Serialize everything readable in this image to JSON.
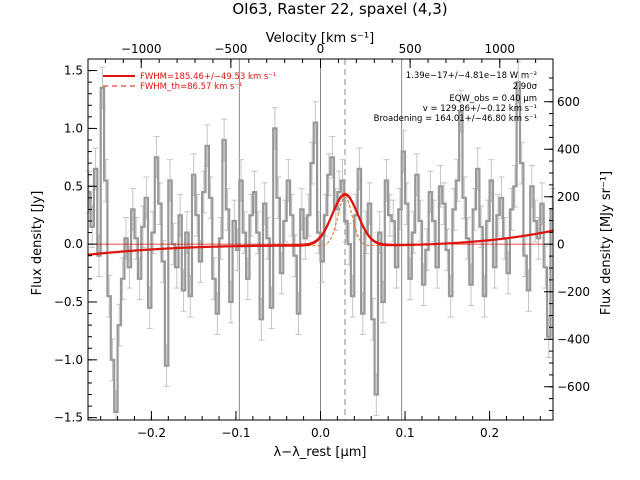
{
  "chart_data": {
    "type": "line",
    "title": "OI63, Raster 22, spaxel (4,3)",
    "xlabel": "λ−λ_rest [μm]",
    "ylabel": "Flux density [Jy]",
    "top_xlabel": "Velocity [km s⁻¹]",
    "right_ylabel": "Flux density [MJy sr⁻¹]",
    "xlim": [
      -0.275,
      0.275
    ],
    "ylim": [
      -1.52,
      1.6
    ],
    "top_xlim": [
      -1297,
      1297
    ],
    "right_ylim": [
      -740,
      780
    ],
    "x_ticks": [
      -0.2,
      -0.1,
      0.0,
      0.1,
      0.2
    ],
    "x_tick_labels": [
      "−0.2",
      "−0.1",
      "0.0",
      "0.1",
      "0.2"
    ],
    "y_ticks": [
      -1.5,
      -1.0,
      -0.5,
      0.0,
      0.5,
      1.0,
      1.5
    ],
    "y_tick_labels": [
      "−1.5",
      "−1.0",
      "−0.5",
      "0.0",
      "0.5",
      "1.0",
      "1.5"
    ],
    "top_ticks": [
      -1000,
      -500,
      0,
      500,
      1000
    ],
    "top_tick_labels": [
      "−1000",
      "−500",
      "0",
      "500",
      "1000"
    ],
    "right_ticks": [
      -600,
      -400,
      -200,
      0,
      200,
      400,
      600
    ],
    "right_tick_labels": [
      "−600",
      "−400",
      "−200",
      "0",
      "200",
      "400",
      "600"
    ],
    "vlines_solid": [
      -0.096,
      0.0,
      0.096
    ],
    "vline_dashed": 0.029,
    "spectrum": {
      "name": "data",
      "x": [
        -0.274,
        -0.27,
        -0.266,
        -0.262,
        -0.258,
        -0.254,
        -0.25,
        -0.246,
        -0.242,
        -0.238,
        -0.234,
        -0.23,
        -0.226,
        -0.222,
        -0.218,
        -0.214,
        -0.21,
        -0.206,
        -0.202,
        -0.198,
        -0.194,
        -0.19,
        -0.186,
        -0.182,
        -0.178,
        -0.174,
        -0.17,
        -0.166,
        -0.162,
        -0.158,
        -0.154,
        -0.15,
        -0.146,
        -0.142,
        -0.138,
        -0.134,
        -0.13,
        -0.126,
        -0.122,
        -0.118,
        -0.114,
        -0.11,
        -0.106,
        -0.102,
        -0.098,
        -0.094,
        -0.09,
        -0.086,
        -0.082,
        -0.078,
        -0.074,
        -0.07,
        -0.066,
        -0.062,
        -0.058,
        -0.054,
        -0.05,
        -0.046,
        -0.042,
        -0.038,
        -0.034,
        -0.03,
        -0.026,
        -0.022,
        -0.018,
        -0.014,
        -0.01,
        -0.006,
        -0.002,
        0.002,
        0.006,
        0.01,
        0.014,
        0.018,
        0.022,
        0.026,
        0.03,
        0.034,
        0.038,
        0.042,
        0.046,
        0.05,
        0.054,
        0.058,
        0.062,
        0.066,
        0.07,
        0.074,
        0.078,
        0.082,
        0.086,
        0.09,
        0.094,
        0.098,
        0.102,
        0.106,
        0.11,
        0.114,
        0.118,
        0.122,
        0.126,
        0.13,
        0.134,
        0.138,
        0.142,
        0.146,
        0.15,
        0.154,
        0.158,
        0.162,
        0.166,
        0.17,
        0.174,
        0.178,
        0.182,
        0.186,
        0.19,
        0.194,
        0.198,
        0.202,
        0.206,
        0.21,
        0.214,
        0.218,
        0.222,
        0.226,
        0.23,
        0.234,
        0.238,
        0.242,
        0.246,
        0.25,
        0.254,
        0.258,
        0.262,
        0.266,
        0.27,
        0.274
      ],
      "y": [
        0.45,
        0.15,
        0.65,
        -0.1,
        1.35,
        0.55,
        -0.45,
        -1.0,
        -1.45,
        -0.7,
        -0.3,
        0.05,
        -0.2,
        0.3,
        0.05,
        -0.3,
        0.15,
        0.4,
        -0.55,
        0.1,
        0.75,
        0.35,
        -0.15,
        -1.05,
        0.55,
        0.0,
        -0.2,
        0.25,
        -0.4,
        0.1,
        -0.45,
        0.6,
        0.25,
        -0.15,
        0.45,
        0.85,
        0.4,
        -0.3,
        -0.6,
        0.05,
        0.9,
        0.3,
        -0.5,
        0.2,
        -0.05,
        0.55,
        0.1,
        -0.3,
        0.25,
        0.45,
        0.1,
        -0.65,
        0.35,
        0.05,
        -0.55,
        1.0,
        0.4,
        -0.25,
        0.2,
        0.55,
        0.25,
        -0.1,
        -0.6,
        0.3,
        0.05,
        0.25,
        0.7,
        1.05,
        0.1,
        -0.15,
        0.25,
        0.6,
        0.75,
        0.3,
        0.45,
        0.55,
        0.2,
        0.0,
        -0.45,
        0.25,
        0.65,
        -0.6,
        0.1,
        0.35,
        -0.65,
        -1.3,
        0.1,
        -0.5,
        0.55,
        0.25,
        0.2,
        -0.2,
        0.3,
        0.8,
        0.35,
        -0.3,
        0.1,
        0.6,
        0.2,
        -0.35,
        -0.05,
        0.45,
        0.2,
        -0.2,
        0.5,
        0.35,
        -0.05,
        -0.45,
        0.3,
        0.55,
        1.15,
        0.4,
        0.05,
        -0.35,
        0.3,
        0.65,
        0.15,
        -0.45,
        0.2,
        0.55,
        -0.2,
        0.25,
        0.4,
        0.05,
        -0.25,
        0.3,
        0.5,
        1.4,
        0.7,
        -0.1,
        -0.4,
        0.5,
        0.2,
        0.05,
        0.35,
        -0.2,
        -0.8,
        0.3
      ],
      "error": 0.18
    },
    "fit": {
      "name": "fit",
      "continuum": [
        -0.0132,
        0.0,
        0.0,
        5.0,
        4.5
      ],
      "line_center": 0.029,
      "line_amplitude": 0.44,
      "line_sigma": 0.0153
    },
    "fit_theoretical": {
      "name": "theoretical",
      "line_amplitude": 0.42,
      "line_sigma": 0.0085
    },
    "legend": [
      {
        "label": "FWHM=185.46+/−49.53 km s⁻¹",
        "style": "solid"
      },
      {
        "label": "FWHM_th=86.57 km s⁻¹",
        "style": "dashed"
      }
    ],
    "annotations": [
      "1.39e−17+/−4.81e−18 W m⁻²",
      "2.90σ",
      "EQW_obs = 0.40 μm",
      "v = 129.86+/−0.12 km s⁻¹",
      "Broadening = 164.01+/−46.80 km s⁻¹"
    ],
    "colors": {
      "data": "#999999",
      "fit": "#e0120c",
      "refline": "#888888"
    }
  }
}
